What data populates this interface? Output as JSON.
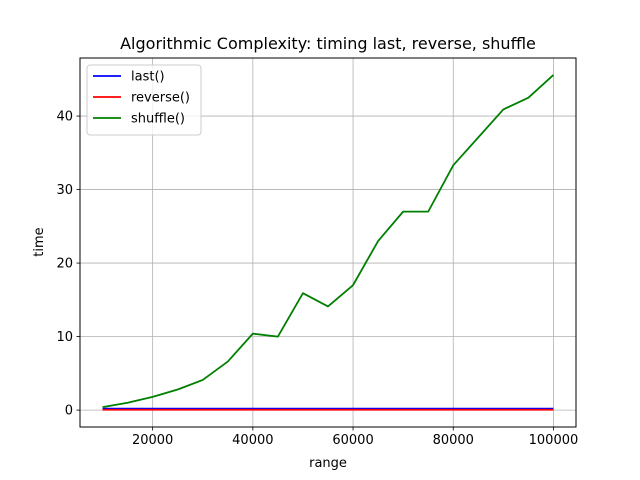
{
  "chart_data": {
    "type": "line",
    "title": "Algorithmic Complexity: timing last, reverse, shuffle",
    "xlabel": "range",
    "ylabel": "time",
    "xlim": [
      5500,
      104500
    ],
    "ylim": [
      -2.3,
      47.9
    ],
    "xticks": [
      20000,
      40000,
      60000,
      80000,
      100000
    ],
    "yticks": [
      0,
      10,
      20,
      30,
      40
    ],
    "grid": true,
    "legend_position": "upper-left",
    "x": [
      10000,
      15000,
      20000,
      25000,
      30000,
      35000,
      40000,
      45000,
      50000,
      55000,
      60000,
      65000,
      70000,
      75000,
      80000,
      85000,
      90000,
      95000,
      100000
    ],
    "series": [
      {
        "name": "last()",
        "color": "#0000ff",
        "values": [
          0.2,
          0.2,
          0.2,
          0.2,
          0.2,
          0.2,
          0.2,
          0.2,
          0.2,
          0.2,
          0.2,
          0.2,
          0.2,
          0.2,
          0.2,
          0.2,
          0.2,
          0.2,
          0.2
        ]
      },
      {
        "name": "reverse()",
        "color": "#ff0000",
        "values": [
          0.05,
          0.05,
          0.05,
          0.05,
          0.05,
          0.05,
          0.05,
          0.05,
          0.05,
          0.05,
          0.05,
          0.05,
          0.05,
          0.05,
          0.05,
          0.05,
          0.05,
          0.05,
          0.05
        ]
      },
      {
        "name": "shuffle()",
        "color": "#008000",
        "values": [
          0.4,
          1.0,
          1.8,
          2.8,
          4.1,
          6.6,
          10.4,
          10.0,
          15.9,
          14.1,
          17.0,
          23.0,
          27.0,
          27.0,
          33.3,
          37.1,
          40.9,
          42.5,
          45.6
        ]
      }
    ]
  }
}
